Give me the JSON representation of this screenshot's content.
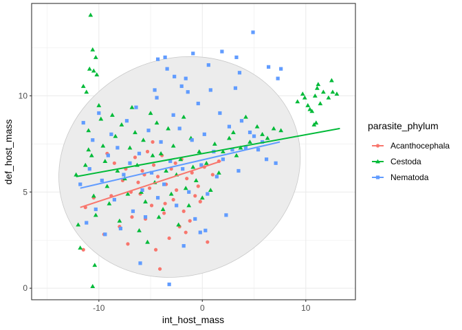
{
  "chart_data": {
    "type": "scatter",
    "xlabel": "int_host_mass",
    "ylabel": "def_host_mass",
    "xlim": [
      -16.5,
      14.8
    ],
    "ylim": [
      -0.6,
      14.8
    ],
    "x_ticks": [
      -10,
      0,
      10
    ],
    "x_tick_labels": [
      "-10",
      "0",
      "10"
    ],
    "y_ticks": [
      0,
      5,
      10
    ],
    "y_tick_labels": [
      "0",
      "5",
      "10"
    ],
    "grid": true,
    "legend": {
      "title": "parasite_phylum",
      "position": "right"
    },
    "ellipse": {
      "center": [
        -2.2,
        6.3
      ],
      "x_extent": [
        -15.8,
        8.4
      ],
      "y_extent": [
        0.3,
        12.4
      ],
      "fill": "#ebebeb",
      "stroke": "#c8c8c8"
    },
    "series": [
      {
        "name": "Acanthocephala",
        "color": "#F8766D",
        "marker": "circle",
        "trend": [
          [
            -11.8,
            4.2
          ],
          [
            1.8,
            6.6
          ]
        ],
        "points": [
          [
            -11.5,
            2.0
          ],
          [
            -11.3,
            4.2
          ],
          [
            -10.5,
            4.7
          ],
          [
            -9.5,
            2.8
          ],
          [
            -9.2,
            7.0
          ],
          [
            -8.5,
            6.5
          ],
          [
            -8.0,
            3.2
          ],
          [
            -7.7,
            5.6
          ],
          [
            -7.2,
            2.3
          ],
          [
            -6.8,
            3.7
          ],
          [
            -6.5,
            6.8
          ],
          [
            -6.2,
            5.5
          ],
          [
            -6.0,
            4.9
          ],
          [
            -5.8,
            6.1
          ],
          [
            -5.5,
            3.6
          ],
          [
            -5.3,
            7.1
          ],
          [
            -5.1,
            5.2
          ],
          [
            -4.9,
            4.3
          ],
          [
            -4.7,
            6.4
          ],
          [
            -4.5,
            2.0
          ],
          [
            -4.3,
            5.8
          ],
          [
            -4.1,
            1.0
          ],
          [
            -3.9,
            6.9
          ],
          [
            -3.7,
            3.9
          ],
          [
            -3.5,
            5.4
          ],
          [
            -3.2,
            2.6
          ],
          [
            -3.0,
            6.2
          ],
          [
            -2.8,
            4.6
          ],
          [
            -2.5,
            5.1
          ],
          [
            -2.2,
            3.2
          ],
          [
            -2.0,
            6.7
          ],
          [
            -1.8,
            4.0
          ],
          [
            -1.5,
            5.7
          ],
          [
            -1.2,
            3.5
          ],
          [
            -1.0,
            6.0
          ],
          [
            -0.7,
            4.8
          ],
          [
            -0.4,
            5.3
          ],
          [
            -0.2,
            4.5
          ],
          [
            0.2,
            6.3
          ],
          [
            0.5,
            2.4
          ],
          [
            1.0,
            5.9
          ],
          [
            1.6,
            6.6
          ],
          [
            -6.9,
            5.0
          ],
          [
            -4.8,
            7.6
          ],
          [
            -3.6,
            4.4
          ],
          [
            -2.6,
            6.5
          ],
          [
            -5.6,
            5.9
          ],
          [
            -7.4,
            6.2
          ],
          [
            -8.8,
            4.8
          ],
          [
            -1.6,
            2.9
          ]
        ]
      },
      {
        "name": "Cestoda",
        "color": "#00BA38",
        "marker": "triangle",
        "trend": [
          [
            -12.2,
            5.8
          ],
          [
            13.3,
            8.3
          ]
        ],
        "points": [
          [
            -12.2,
            5.9
          ],
          [
            -12.0,
            3.3
          ],
          [
            -11.8,
            2.1
          ],
          [
            -11.5,
            10.5
          ],
          [
            -11.2,
            10.2
          ],
          [
            -11.0,
            8.2
          ],
          [
            -10.8,
            14.2
          ],
          [
            -10.6,
            12.4
          ],
          [
            -10.5,
            11.3
          ],
          [
            -10.3,
            12.0
          ],
          [
            -10.2,
            11.1
          ],
          [
            -10.9,
            11.4
          ],
          [
            -10.6,
            0.1
          ],
          [
            -10.4,
            1.2
          ],
          [
            -11.3,
            6.4
          ],
          [
            -11.0,
            7.2
          ],
          [
            -10.7,
            6.9
          ],
          [
            -10.5,
            4.8
          ],
          [
            -10.3,
            3.8
          ],
          [
            -10.0,
            9.5
          ],
          [
            -9.8,
            8.8
          ],
          [
            -9.6,
            7.4
          ],
          [
            -9.4,
            6.6
          ],
          [
            -9.2,
            5.3
          ],
          [
            -9.0,
            4.4
          ],
          [
            -8.7,
            9.0
          ],
          [
            -8.4,
            7.9
          ],
          [
            -8.2,
            6.1
          ],
          [
            -8.0,
            3.5
          ],
          [
            -7.8,
            8.5
          ],
          [
            -7.5,
            5.7
          ],
          [
            -7.2,
            4.9
          ],
          [
            -7.0,
            7.3
          ],
          [
            -6.8,
            9.4
          ],
          [
            -6.5,
            8.1
          ],
          [
            -6.3,
            6.4
          ],
          [
            -6.1,
            3.0
          ],
          [
            -5.9,
            5.0
          ],
          [
            -5.7,
            7.7
          ],
          [
            -5.5,
            4.5
          ],
          [
            -5.3,
            2.4
          ],
          [
            -5.0,
            9.1
          ],
          [
            -4.8,
            6.9
          ],
          [
            -4.6,
            5.5
          ],
          [
            -4.4,
            8.6
          ],
          [
            -4.2,
            3.7
          ],
          [
            -4.0,
            7.0
          ],
          [
            -3.8,
            4.1
          ],
          [
            -3.5,
            6.1
          ],
          [
            -3.3,
            8.3
          ],
          [
            -3.0,
            4.9
          ],
          [
            -2.8,
            7.4
          ],
          [
            -2.5,
            5.9
          ],
          [
            -2.3,
            3.3
          ],
          [
            -2.1,
            6.7
          ],
          [
            -1.8,
            8.9
          ],
          [
            -1.6,
            5.2
          ],
          [
            -1.3,
            4.3
          ],
          [
            -1.1,
            7.8
          ],
          [
            -0.9,
            6.3
          ],
          [
            -0.6,
            5.6
          ],
          [
            -0.3,
            7.1
          ],
          [
            0.0,
            4.7
          ],
          [
            0.4,
            6.5
          ],
          [
            0.8,
            5.1
          ],
          [
            1.2,
            7.5
          ],
          [
            1.6,
            6.0
          ],
          [
            2.0,
            7.1
          ],
          [
            2.6,
            7.8
          ],
          [
            3.0,
            8.1
          ],
          [
            3.3,
            6.9
          ],
          [
            3.7,
            7.3
          ],
          [
            4.2,
            8.9
          ],
          [
            4.6,
            7.6
          ],
          [
            5.3,
            8.4
          ],
          [
            5.8,
            8.0
          ],
          [
            6.3,
            7.8
          ],
          [
            6.9,
            8.3
          ],
          [
            7.6,
            8.2
          ],
          [
            9.2,
            9.7
          ],
          [
            9.7,
            10.1
          ],
          [
            10.2,
            9.5
          ],
          [
            10.6,
            9.2
          ],
          [
            10.9,
            10.0
          ],
          [
            11.1,
            10.4
          ],
          [
            11.4,
            9.6
          ],
          [
            11.7,
            10.2
          ],
          [
            12.2,
            9.9
          ],
          [
            12.5,
            10.8
          ],
          [
            13.0,
            10.1
          ],
          [
            10.8,
            8.5
          ],
          [
            11.0,
            8.6
          ],
          [
            9.9,
            9.9
          ],
          [
            10.4,
            9.3
          ],
          [
            11.2,
            10.6
          ],
          [
            12.6,
            10.2
          ]
        ]
      },
      {
        "name": "Nematoda",
        "color": "#619CFF",
        "marker": "square",
        "trend": [
          [
            -11.8,
            5.2
          ],
          [
            7.5,
            7.6
          ]
        ],
        "points": [
          [
            -11.8,
            5.4
          ],
          [
            -11.5,
            8.6
          ],
          [
            -11.2,
            3.4
          ],
          [
            -10.9,
            6.2
          ],
          [
            -10.6,
            7.7
          ],
          [
            -10.3,
            4.1
          ],
          [
            -10.0,
            9.1
          ],
          [
            -9.7,
            5.6
          ],
          [
            -9.4,
            2.8
          ],
          [
            -9.1,
            6.9
          ],
          [
            -8.8,
            8.0
          ],
          [
            -8.5,
            4.6
          ],
          [
            -8.2,
            7.3
          ],
          [
            -7.9,
            3.1
          ],
          [
            -7.6,
            5.9
          ],
          [
            -7.3,
            8.7
          ],
          [
            -7.0,
            6.5
          ],
          [
            -6.7,
            4.0
          ],
          [
            -6.4,
            9.4
          ],
          [
            -6.1,
            7.0
          ],
          [
            -5.8,
            5.1
          ],
          [
            -5.5,
            3.7
          ],
          [
            -5.2,
            8.2
          ],
          [
            -4.9,
            6.0
          ],
          [
            -4.6,
            10.3
          ],
          [
            -4.3,
            4.7
          ],
          [
            -4.0,
            7.6
          ],
          [
            -3.7,
            5.4
          ],
          [
            -3.4,
            11.4
          ],
          [
            -3.1,
            6.6
          ],
          [
            -2.8,
            9.0
          ],
          [
            -2.5,
            4.3
          ],
          [
            -2.2,
            8.3
          ],
          [
            -1.9,
            6.2
          ],
          [
            -1.6,
            10.9
          ],
          [
            -1.3,
            5.0
          ],
          [
            -1.0,
            7.7
          ],
          [
            -0.7,
            3.6
          ],
          [
            -0.4,
            9.6
          ],
          [
            -0.1,
            6.4
          ],
          [
            0.2,
            8.0
          ],
          [
            0.5,
            4.9
          ],
          [
            0.8,
            10.3
          ],
          [
            1.1,
            7.1
          ],
          [
            1.4,
            5.8
          ],
          [
            1.7,
            9.1
          ],
          [
            2.0,
            6.7
          ],
          [
            2.3,
            3.8
          ],
          [
            2.6,
            8.4
          ],
          [
            2.9,
            7.2
          ],
          [
            3.2,
            10.4
          ],
          [
            3.5,
            6.1
          ],
          [
            3.8,
            8.7
          ],
          [
            4.2,
            7.3
          ],
          [
            4.6,
            8.1
          ],
          [
            5.0,
            7.9
          ],
          [
            5.4,
            7.2
          ],
          [
            5.8,
            7.6
          ],
          [
            6.2,
            6.7
          ],
          [
            7.1,
            6.5
          ],
          [
            -4.3,
            11.9
          ],
          [
            -3.6,
            12.0
          ],
          [
            -1.4,
            10.2
          ],
          [
            -2.0,
            10.5
          ],
          [
            3.6,
            11.2
          ],
          [
            4.9,
            13.3
          ],
          [
            6.4,
            11.5
          ],
          [
            7.6,
            11.4
          ],
          [
            7.3,
            10.9
          ],
          [
            3.3,
            12.0
          ],
          [
            -3.2,
            0.2
          ],
          [
            -1.8,
            2.2
          ],
          [
            -0.2,
            2.9
          ],
          [
            -6.0,
            1.3
          ],
          [
            0.3,
            3.0
          ],
          [
            -4.4,
            9.9
          ],
          [
            -2.7,
            11.0
          ],
          [
            0.6,
            11.6
          ],
          [
            1.9,
            12.3
          ],
          [
            -0.9,
            12.2
          ]
        ]
      }
    ]
  }
}
